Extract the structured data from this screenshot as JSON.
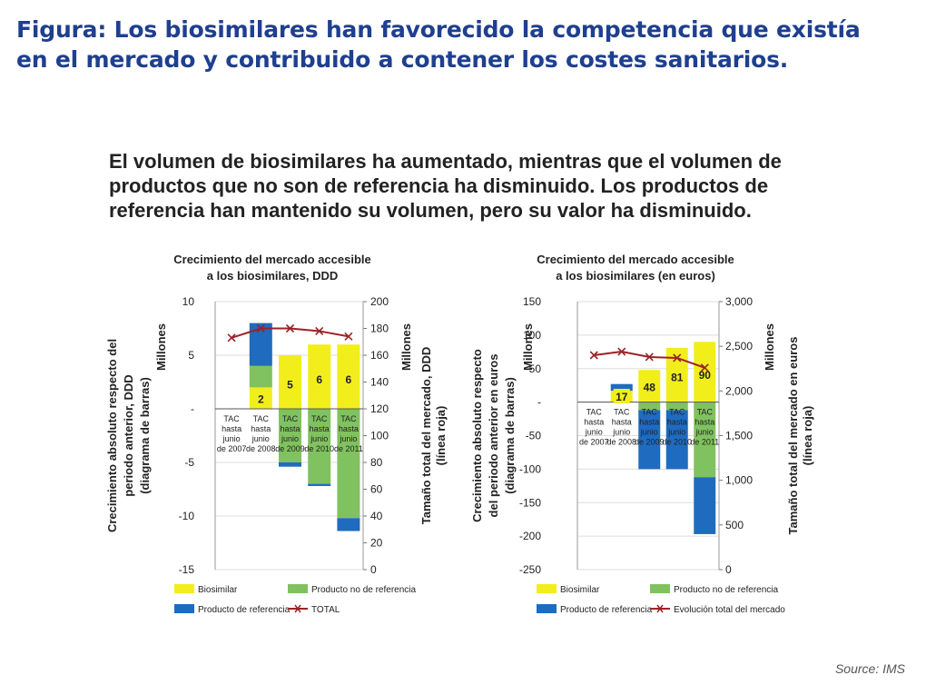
{
  "figure": {
    "title_line1": "Figura: Los biosimilares han favorecido la competencia que existía",
    "title_line2": "en el mercado y contribuido a contener los costes sanitarios."
  },
  "subtitle": {
    "line1": "El volumen de biosimilares ha aumentado, mientras que el volumen de",
    "line2": "productos que no son de referencia ha disminuido. Los productos de",
    "line3": "referencia han mantenido su volumen, pero su valor ha disminuido."
  },
  "source": "Source: IMS",
  "colors": {
    "biosimilar": "#f2ee1c",
    "non_reference": "#80c25f",
    "reference": "#1f6bbf",
    "total_line": "#9b2226",
    "gridline": "#dddddd"
  },
  "chart_data": [
    {
      "type": "bar",
      "stacked": true,
      "title_line1": "Crecimiento del mercado accesible",
      "title_line2": "a los biosimilares, DDD",
      "ylabel_line1": "Crecimiento absoluto respecto del",
      "ylabel_line2": "periodo anterior, DDD",
      "ylabel_line3": "(diagrama de barras)",
      "y_units": "Millones",
      "y2label_line1": "Tamaño total del mercado, DDD",
      "y2label_line2": "(línea roja)",
      "y2_units": "Millones",
      "ylim": [
        -15,
        10
      ],
      "yticks": [
        10,
        5,
        0,
        -5,
        -10,
        -15
      ],
      "ytick_labels": [
        "10",
        "5",
        "-",
        "-5",
        "-10",
        "-15"
      ],
      "y2lim": [
        0,
        200
      ],
      "y2ticks": [
        200,
        180,
        160,
        140,
        120,
        100,
        80,
        60,
        40,
        20,
        0
      ],
      "categories": [
        [
          "TAC",
          "hasta",
          "junio",
          "de 2007"
        ],
        [
          "TAC",
          "hasta",
          "junio",
          "de 2008"
        ],
        [
          "TAC",
          "hasta",
          "junio",
          "de 2009"
        ],
        [
          "TAC",
          "hasta",
          "junio",
          "de 2010"
        ],
        [
          "TAC",
          "hasta",
          "junio",
          "de 2011"
        ]
      ],
      "series": [
        {
          "name": "Biosimilar",
          "values": [
            0,
            2,
            5,
            6,
            6
          ],
          "color": "#f2ee1c"
        },
        {
          "name": "Producto no de referencia",
          "values": [
            0,
            2,
            -5,
            -7,
            -10.2
          ],
          "color": "#80c25f"
        },
        {
          "name": "Producto de referencia",
          "values": [
            0,
            4,
            -0.4,
            -0.2,
            -1.2
          ],
          "color": "#1f6bbf"
        }
      ],
      "bar_labels": [
        "",
        "2",
        "5",
        "6",
        "6"
      ],
      "line": {
        "name": "TOTAL",
        "values": [
          173,
          180,
          180,
          178,
          174
        ],
        "color": "#9b2226"
      },
      "legend": [
        {
          "label": "Biosimilar",
          "kind": "box",
          "color": "#f2ee1c"
        },
        {
          "label": "Producto no de referencia",
          "kind": "box",
          "color": "#80c25f"
        },
        {
          "label": "Producto de referencia",
          "kind": "box",
          "color": "#1f6bbf"
        },
        {
          "label": "TOTAL",
          "kind": "line",
          "color": "#9b2226"
        }
      ],
      "legend_position": "bottom",
      "grid": true
    },
    {
      "type": "bar",
      "stacked": true,
      "title_line1": "Crecimiento del mercado accesible",
      "title_line2": "a los biosimilares (en euros)",
      "ylabel_line1": "Crecimiento absoluto respecto",
      "ylabel_line2": "del periodo anterior en euros",
      "ylabel_line3": "(diagrama de barras)",
      "y_units": "Millones",
      "y2label_line1": "Tamaño total del mercado en euros",
      "y2label_line2": "(línea roja)",
      "y2_units": "Millones",
      "ylim": [
        -250,
        150
      ],
      "yticks": [
        150,
        100,
        50,
        0,
        -50,
        -100,
        -150,
        -200,
        -250
      ],
      "ytick_labels": [
        "150",
        "100",
        "50",
        "-",
        "-50",
        "-100",
        "-150",
        "-200",
        "-250"
      ],
      "y2lim": [
        0,
        3000
      ],
      "y2ticks": [
        3000,
        2500,
        2000,
        1500,
        1000,
        500,
        0
      ],
      "y2tick_labels": [
        "3,000",
        "2,500",
        "2,000",
        "1,500",
        "1,000",
        "500",
        "0"
      ],
      "categories": [
        [
          "TAC",
          "hasta",
          "junio",
          "de 2007"
        ],
        [
          "TAC",
          "hasta",
          "junio",
          "de 2008"
        ],
        [
          "TAC",
          "hasta",
          "junio",
          "de 2009"
        ],
        [
          "TAC",
          "hasta",
          "junio",
          "de 2010"
        ],
        [
          "TAC",
          "hasta",
          "junio",
          "de 2011"
        ]
      ],
      "series": [
        {
          "name": "Biosimilar",
          "values": [
            0,
            17,
            48,
            81,
            90
          ],
          "color": "#f2ee1c"
        },
        {
          "name": "Producto no de referencia",
          "values": [
            0,
            0,
            -12,
            -12,
            -112
          ],
          "color": "#80c25f"
        },
        {
          "name": "Producto de referencia",
          "values": [
            0,
            10,
            -88,
            -88,
            -85
          ],
          "color": "#1f6bbf"
        }
      ],
      "bar_labels": [
        "",
        "17",
        "48",
        "81",
        "90"
      ],
      "line": {
        "name": "Evolución total del mercado",
        "values": [
          2400,
          2440,
          2380,
          2370,
          2260
        ],
        "color": "#9b2226"
      },
      "legend": [
        {
          "label": "Biosimilar",
          "kind": "box",
          "color": "#f2ee1c"
        },
        {
          "label": "Producto no de referencia",
          "kind": "box",
          "color": "#80c25f"
        },
        {
          "label": "Producto de referencia",
          "kind": "box",
          "color": "#1f6bbf"
        },
        {
          "label": "Evolución total del mercado",
          "kind": "line",
          "color": "#9b2226"
        }
      ],
      "legend_position": "bottom",
      "grid": true
    }
  ]
}
